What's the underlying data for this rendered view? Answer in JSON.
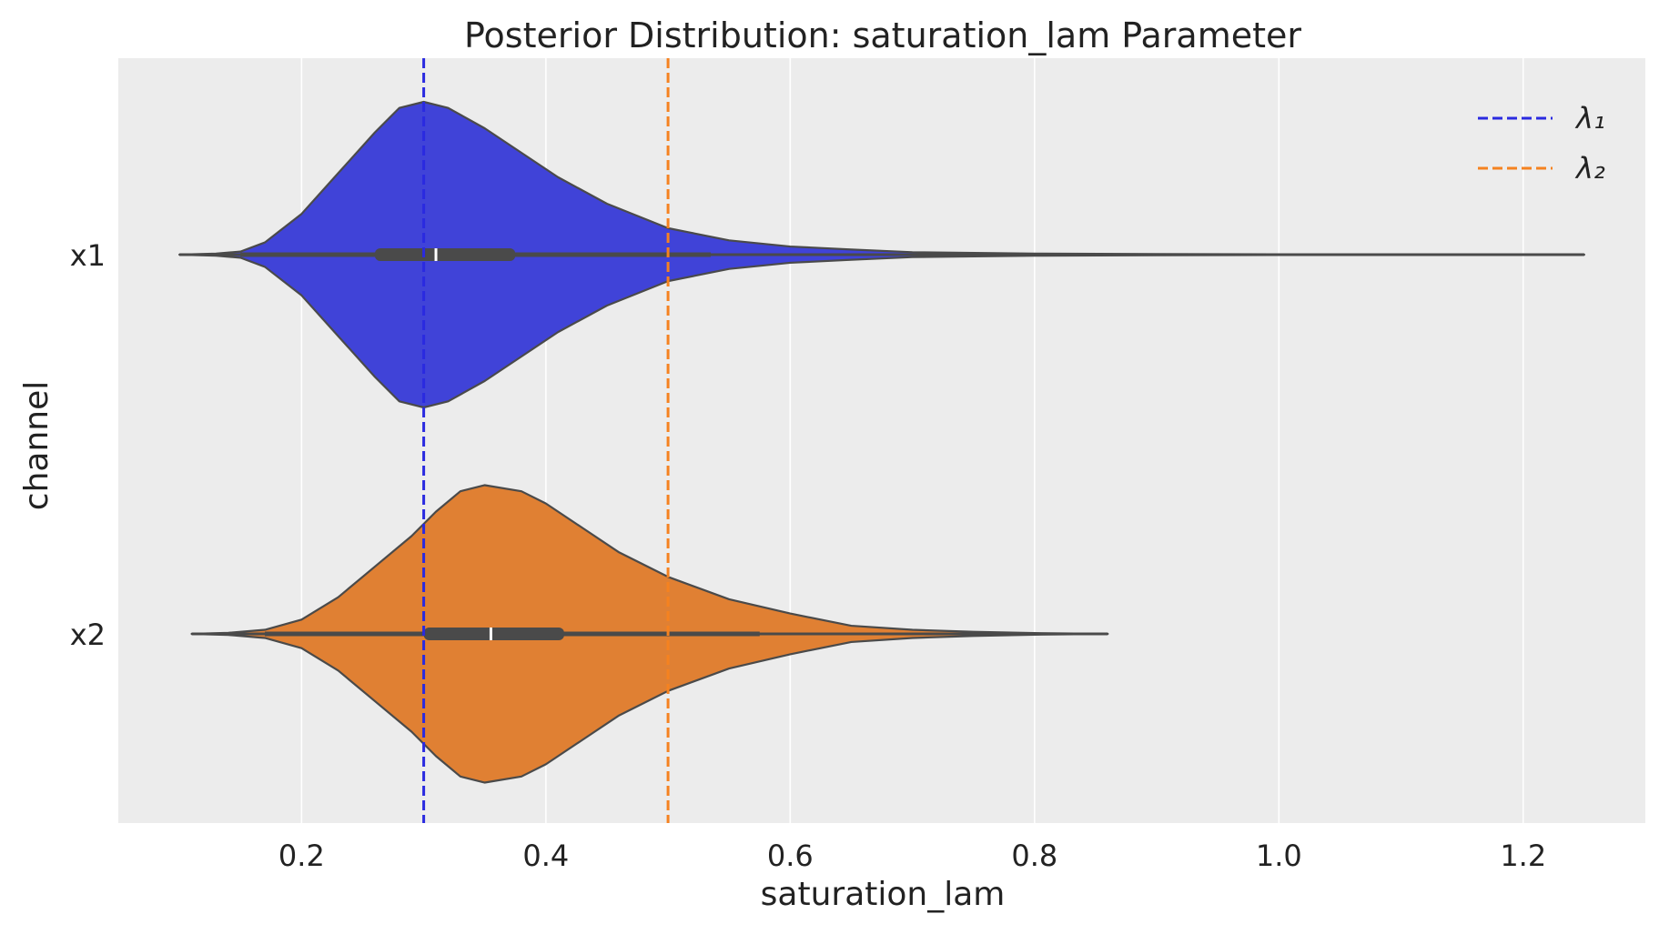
{
  "chart_data": {
    "type": "violin",
    "title": "Posterior Distribution: saturation_lam Parameter",
    "xlabel": "saturation_lam",
    "ylabel": "channel",
    "xlim": [
      0.05,
      1.3
    ],
    "x_ticks": [
      0.2,
      0.4,
      0.6,
      0.8,
      1.0,
      1.2
    ],
    "x_tick_labels": [
      "0.2",
      "0.4",
      "0.6",
      "0.8",
      "1.0",
      "1.2"
    ],
    "categories": [
      "x1",
      "x2"
    ],
    "grid": true,
    "legend_position": "top-right",
    "series": [
      {
        "category": "x1",
        "color": "#4043d8",
        "min": 0.1,
        "q1": 0.26,
        "median": 0.31,
        "q3": 0.375,
        "max": 1.25,
        "whisker_low": 0.15,
        "whisker_high": 0.535,
        "density": [
          [
            0.1,
            0.0
          ],
          [
            0.13,
            0.005
          ],
          [
            0.15,
            0.015
          ],
          [
            0.17,
            0.06
          ],
          [
            0.2,
            0.2
          ],
          [
            0.23,
            0.4
          ],
          [
            0.26,
            0.6
          ],
          [
            0.28,
            0.72
          ],
          [
            0.3,
            0.75
          ],
          [
            0.32,
            0.72
          ],
          [
            0.35,
            0.62
          ],
          [
            0.38,
            0.5
          ],
          [
            0.41,
            0.38
          ],
          [
            0.45,
            0.25
          ],
          [
            0.5,
            0.13
          ],
          [
            0.55,
            0.07
          ],
          [
            0.6,
            0.04
          ],
          [
            0.65,
            0.025
          ],
          [
            0.7,
            0.012
          ],
          [
            0.8,
            0.005
          ],
          [
            0.9,
            0.003
          ],
          [
            1.0,
            0.002
          ],
          [
            1.25,
            0.0
          ]
        ]
      },
      {
        "category": "x2",
        "color": "#e08033",
        "min": 0.11,
        "q1": 0.3,
        "median": 0.355,
        "q3": 0.415,
        "max": 0.86,
        "whisker_low": 0.17,
        "whisker_high": 0.575,
        "density": [
          [
            0.11,
            0.0
          ],
          [
            0.14,
            0.005
          ],
          [
            0.17,
            0.02
          ],
          [
            0.2,
            0.07
          ],
          [
            0.23,
            0.18
          ],
          [
            0.26,
            0.33
          ],
          [
            0.29,
            0.48
          ],
          [
            0.31,
            0.6
          ],
          [
            0.33,
            0.7
          ],
          [
            0.35,
            0.73
          ],
          [
            0.38,
            0.7
          ],
          [
            0.4,
            0.64
          ],
          [
            0.43,
            0.52
          ],
          [
            0.46,
            0.4
          ],
          [
            0.5,
            0.28
          ],
          [
            0.55,
            0.17
          ],
          [
            0.6,
            0.1
          ],
          [
            0.65,
            0.04
          ],
          [
            0.7,
            0.02
          ],
          [
            0.75,
            0.01
          ],
          [
            0.8,
            0.004
          ],
          [
            0.86,
            0.0
          ]
        ]
      }
    ],
    "reference_lines": [
      {
        "label": "λ₁",
        "value": 0.3,
        "color": "#2a2ae0",
        "style": "dashed"
      },
      {
        "label": "λ₂",
        "value": 0.5,
        "color": "#f58220",
        "style": "dashed"
      }
    ]
  }
}
